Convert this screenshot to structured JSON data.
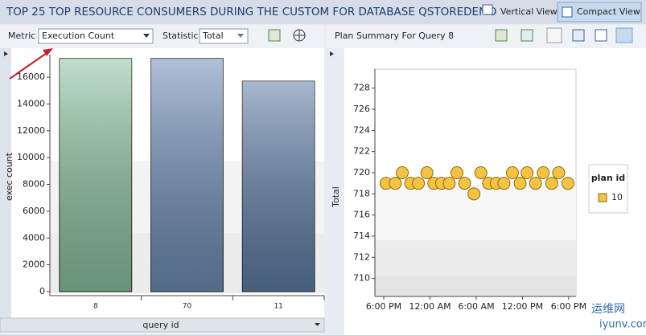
{
  "header": {
    "title": "TOP 25 TOP RESOURCE CONSUMERS DURING THE CUSTOM FOR DATABASE QSTOREDEMO",
    "buttons": [
      "Vertical View",
      "Compact View"
    ]
  },
  "toolbar": {
    "metric_label": "Metric",
    "metric_value": "Execution Count",
    "statistic_label": "Statistic",
    "statistic_value": "Total"
  },
  "watermark": {
    "text": "运维网",
    "url": "iyunv.com"
  },
  "chart_data": [
    {
      "type": "bar",
      "categories": [
        "8",
        "70",
        "11"
      ],
      "values": [
        17400,
        17400,
        15700
      ],
      "colors": [
        "#8cc5a2",
        "#6f8fb8",
        "#5f7fa8"
      ],
      "x_label": "query id",
      "y_label": "exec count",
      "ylim": [
        0,
        17500
      ],
      "yticks": [
        0,
        2000,
        4000,
        6000,
        8000,
        10000,
        12000,
        14000,
        16000
      ]
    },
    {
      "type": "scatter",
      "title": "Plan Summary For Query 8",
      "y_label": "Total",
      "legend_title": "plan id",
      "series": [
        {
          "name": "10",
          "color": "#f5c342",
          "x": [
            0.3,
            1.5,
            2.4,
            3.5,
            4.5,
            5.6,
            6.5,
            7.5,
            8.5,
            9.5,
            10.5,
            11.7,
            12.6,
            13.6,
            14.6,
            15.6,
            16.7,
            17.7,
            18.6,
            19.7,
            20.7,
            21.8,
            22.7,
            23.9
          ],
          "values": [
            719,
            719,
            720,
            719,
            719,
            720,
            719,
            719,
            719,
            720,
            719,
            718,
            720,
            719,
            719,
            719,
            720,
            719,
            720,
            719,
            720,
            719,
            720,
            719
          ]
        }
      ],
      "xlim": [
        -1.15,
        24.95
      ],
      "xticks": [
        {
          "value": 0,
          "label": "6:00 PM"
        },
        {
          "value": 6,
          "label": "12:00 AM"
        },
        {
          "value": 12,
          "label": "6:00 AM"
        },
        {
          "value": 18,
          "label": "12:00 PM"
        },
        {
          "value": 24,
          "label": "6:00 PM"
        }
      ],
      "ylim": [
        708.3,
        729.8
      ],
      "yticks": [
        710,
        712,
        714,
        716,
        718,
        720,
        722,
        724,
        726,
        728
      ]
    }
  ]
}
